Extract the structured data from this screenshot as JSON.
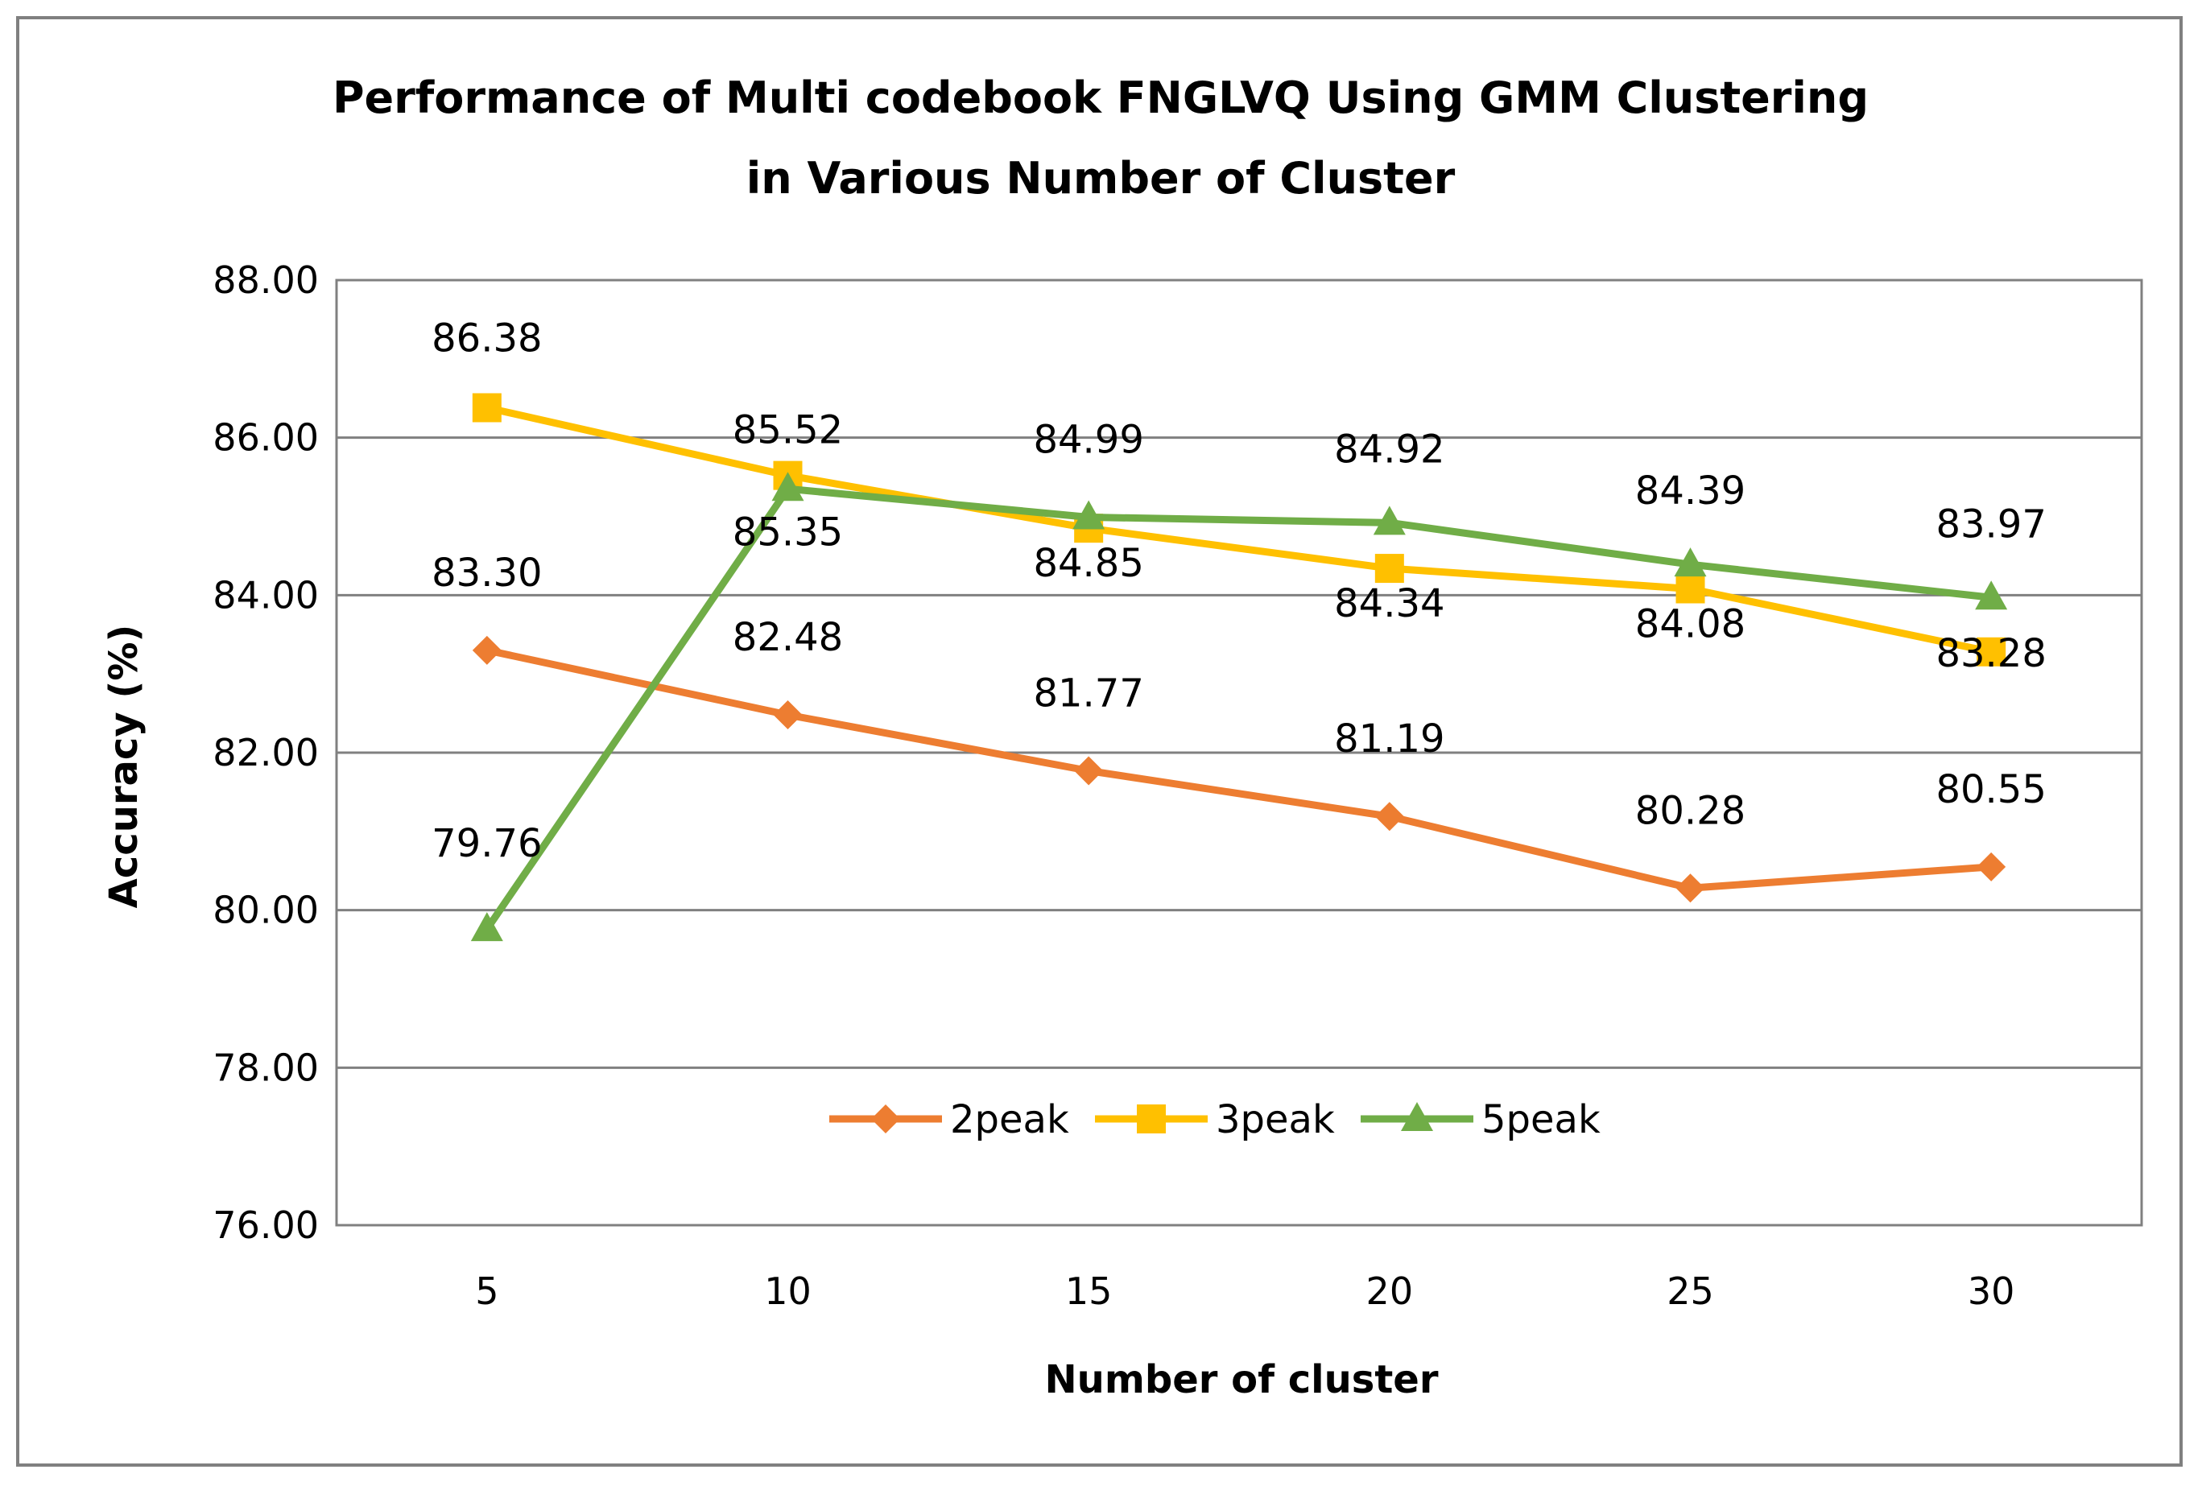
{
  "chart_data": {
    "type": "line",
    "title_lines": [
      "Performance of Multi codebook FNGLVQ Using GMM Clustering",
      "in Various Number of Cluster"
    ],
    "xlabel": "Number of cluster",
    "ylabel": "Accuracy  (%)",
    "categories": [
      "5",
      "10",
      "15",
      "20",
      "25",
      "30"
    ],
    "ylim": [
      76,
      88
    ],
    "yticks": [
      76,
      78,
      80,
      82,
      84,
      86,
      88
    ],
    "ytick_labels": [
      "76.00",
      "78.00",
      "80.00",
      "82.00",
      "84.00",
      "86.00",
      "88.00"
    ],
    "grid": true,
    "legend_position": "bottom-center inside plot",
    "series": [
      {
        "name": "2peak",
        "color": "#ED7D31",
        "marker": "diamond",
        "values": [
          83.3,
          82.48,
          81.77,
          81.19,
          80.28,
          80.55
        ],
        "labels": [
          "83.30",
          "82.48",
          "81.77",
          "81.19",
          "80.28",
          "80.55"
        ]
      },
      {
        "name": "3peak",
        "color": "#FFC000",
        "marker": "square",
        "values": [
          86.38,
          85.52,
          84.85,
          84.34,
          84.08,
          83.28
        ],
        "labels": [
          "86.38",
          "85.52",
          "84.85",
          "84.34",
          "84.08",
          "83.28"
        ]
      },
      {
        "name": "5peak",
        "color": "#70AD47",
        "marker": "triangle",
        "values": [
          79.76,
          85.35,
          84.99,
          84.92,
          84.39,
          83.97
        ],
        "labels": [
          "79.76",
          "85.35",
          "84.99",
          "84.92",
          "84.39",
          "83.97"
        ]
      }
    ]
  }
}
